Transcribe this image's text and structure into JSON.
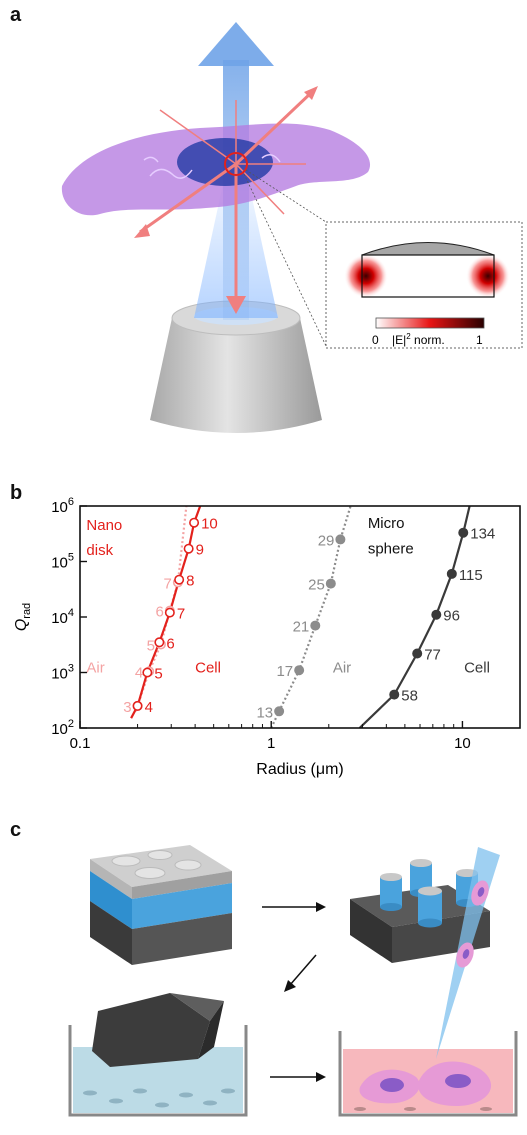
{
  "panels": {
    "a": "a",
    "b": "b",
    "c": "c"
  },
  "inset": {
    "scale_min": "0",
    "scale_label_prefix": "|E|",
    "scale_label_sup": "2",
    "scale_label_suffix": " norm.",
    "scale_max": "1"
  },
  "colors": {
    "nano_cell": "#e3211c",
    "nano_air": "#f4a3a3",
    "micro_air": "#8c8c8c",
    "micro_cell": "#3a3a3a",
    "beam": "#6fa3e8",
    "cell_membrane": "#b57be0",
    "nucleus": "#2b3fa8"
  },
  "chart_data": {
    "type": "line",
    "xlabel": "Radius (μm)",
    "ylabel_main": "Q",
    "ylabel_sub": "rad",
    "x_scale": "log",
    "y_scale": "log",
    "xlim": [
      0.1,
      20
    ],
    "ylim": [
      100,
      1000000
    ],
    "x_ticks": [
      {
        "value": 0.1,
        "label": "0.1"
      },
      {
        "value": 1,
        "label": "1"
      },
      {
        "value": 10,
        "label": "10"
      }
    ],
    "y_ticks": [
      {
        "value": 100,
        "base": "10",
        "exp": "2"
      },
      {
        "value": 1000,
        "base": "10",
        "exp": "3"
      },
      {
        "value": 10000,
        "base": "10",
        "exp": "4"
      },
      {
        "value": 100000,
        "base": "10",
        "exp": "5"
      },
      {
        "value": 1000000,
        "base": "10",
        "exp": "6"
      }
    ],
    "annotations": [
      {
        "text": "Nano",
        "x": 0.108,
        "y": 370000,
        "color": "#e3211c"
      },
      {
        "text": "disk",
        "x": 0.108,
        "y": 130000,
        "color": "#e3211c"
      },
      {
        "text": "Air",
        "x": 0.108,
        "y": 1000,
        "color": "#f4a3a3"
      },
      {
        "text": "Cell",
        "x": 0.4,
        "y": 1000,
        "color": "#e3211c"
      },
      {
        "text": "Micro",
        "x": 3.2,
        "y": 400000,
        "color": "#111111"
      },
      {
        "text": "sphere",
        "x": 3.2,
        "y": 140000,
        "color": "#111111"
      },
      {
        "text": "Air",
        "x": 2.1,
        "y": 1000,
        "color": "#8c8c8c"
      },
      {
        "text": "Cell",
        "x": 10.2,
        "y": 1000,
        "color": "#3a3a3a"
      }
    ],
    "series": [
      {
        "style": "dotted-open",
        "color": "#f4a3a3",
        "points": [
          {
            "x": 0.2,
            "y": 250,
            "label": "3"
          },
          {
            "x": 0.23,
            "y": 1050,
            "label": "4"
          },
          {
            "x": 0.265,
            "y": 3200,
            "label": "5"
          },
          {
            "x": 0.295,
            "y": 13000,
            "label": "6"
          },
          {
            "x": 0.325,
            "y": 42000,
            "label": "7"
          }
        ],
        "curve": [
          [
            0.195,
            200
          ],
          [
            0.36,
            1000000
          ]
        ]
      },
      {
        "style": "solid-open",
        "color": "#e3211c",
        "points": [
          {
            "x": 0.2,
            "y": 250,
            "label": "4"
          },
          {
            "x": 0.225,
            "y": 1000,
            "label": "5"
          },
          {
            "x": 0.26,
            "y": 3500,
            "label": "6"
          },
          {
            "x": 0.295,
            "y": 12000,
            "label": "7"
          },
          {
            "x": 0.33,
            "y": 47000,
            "label": "8"
          },
          {
            "x": 0.37,
            "y": 170000,
            "label": "9"
          },
          {
            "x": 0.395,
            "y": 500000,
            "label": "10"
          }
        ],
        "curve": [
          [
            0.185,
            150
          ],
          [
            0.425,
            1000000
          ]
        ]
      },
      {
        "style": "dotted-filled",
        "color": "#8c8c8c",
        "points": [
          {
            "x": 1.1,
            "y": 200,
            "label": "13"
          },
          {
            "x": 1.4,
            "y": 1100,
            "label": "17"
          },
          {
            "x": 1.7,
            "y": 7000,
            "label": "21"
          },
          {
            "x": 2.05,
            "y": 40000,
            "label": "25"
          },
          {
            "x": 2.3,
            "y": 250000,
            "label": "29"
          }
        ],
        "curve": [
          [
            1.0,
            100
          ],
          [
            2.6,
            1000000
          ]
        ]
      },
      {
        "style": "solid-filled",
        "color": "#3a3a3a",
        "points": [
          {
            "x": 4.4,
            "y": 400,
            "label": "58"
          },
          {
            "x": 5.8,
            "y": 2200,
            "label": "77"
          },
          {
            "x": 7.3,
            "y": 11000,
            "label": "96"
          },
          {
            "x": 8.8,
            "y": 60000,
            "label": "115"
          },
          {
            "x": 10.1,
            "y": 330000,
            "label": "134"
          }
        ],
        "curve": [
          [
            2.9,
            100
          ],
          [
            10.9,
            1000000
          ]
        ]
      }
    ]
  }
}
